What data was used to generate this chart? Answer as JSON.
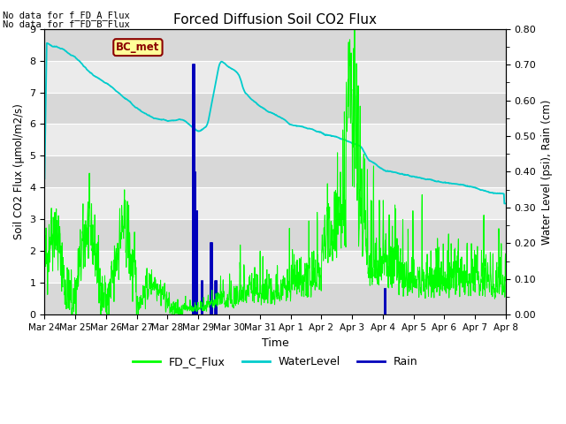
{
  "title": "Forced Diffusion Soil CO2 Flux",
  "xlabel": "Time",
  "ylabel_left": "Soil CO2 Flux (μmol/m2/s)",
  "ylabel_right": "Water Level (psi), Rain (cm)",
  "no_data_text": [
    "No data for f_FD_A_Flux",
    "No data for f_FD_B_Flux"
  ],
  "bc_met_label": "BC_met",
  "ylim_left": [
    0,
    9.0
  ],
  "ylim_right": [
    0.0,
    0.8
  ],
  "yticks_left": [
    0.0,
    1.0,
    2.0,
    3.0,
    4.0,
    5.0,
    6.0,
    7.0,
    8.0,
    9.0
  ],
  "yticks_right": [
    0.0,
    0.1,
    0.2,
    0.3,
    0.4,
    0.5,
    0.6,
    0.7,
    0.8
  ],
  "xtick_labels": [
    "Mar 24",
    "Mar 25",
    "Mar 26",
    "Mar 27",
    "Mar 28",
    "Mar 29",
    "Mar 30",
    "Mar 31",
    "Apr 1",
    "Apr 2",
    "Apr 3",
    "Apr 4",
    "Apr 5",
    "Apr 6",
    "Apr 7",
    "Apr 8"
  ],
  "legend_entries": [
    "FD_C_Flux",
    "WaterLevel",
    "Rain"
  ],
  "fd_c_color": "#00ff00",
  "water_color": "#00cccc",
  "rain_color": "#0000bb",
  "bg_color_dark": "#d8d8d8",
  "bg_color_light": "#ebebeb",
  "grid_color": "#ffffff"
}
